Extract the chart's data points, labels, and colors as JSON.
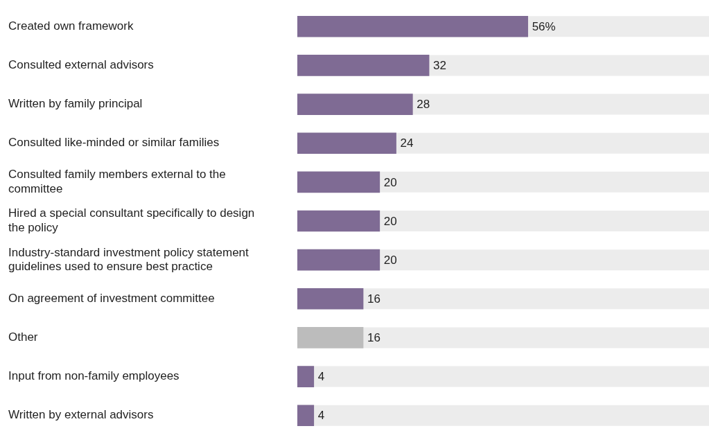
{
  "chart_data": {
    "type": "bar",
    "orientation": "horizontal",
    "categories": [
      "Created own framework",
      "Consulted external advisors",
      "Written by family principal",
      "Consulted like-minded or similar families",
      "Consulted family members external to the committee",
      "Hired a special consultant specifically to design the policy",
      "Industry-standard investment policy statement guidelines used to ensure best practice",
      "On agreement of investment committee",
      "Other",
      "Input from non-family employees",
      "Written by external advisors"
    ],
    "values": [
      56,
      32,
      28,
      24,
      20,
      20,
      20,
      16,
      16,
      4,
      4
    ],
    "colors": [
      "#7f6b94",
      "#7f6b94",
      "#7f6b94",
      "#7f6b94",
      "#7f6b94",
      "#7f6b94",
      "#7f6b94",
      "#7f6b94",
      "#bcbcbc",
      "#7f6b94",
      "#7f6b94"
    ],
    "value_labels": [
      "56%",
      "32",
      "28",
      "24",
      "20",
      "20",
      "20",
      "16",
      "16",
      "4",
      "4"
    ],
    "xlim": [
      0,
      100
    ],
    "tick_labels": "y"
  }
}
